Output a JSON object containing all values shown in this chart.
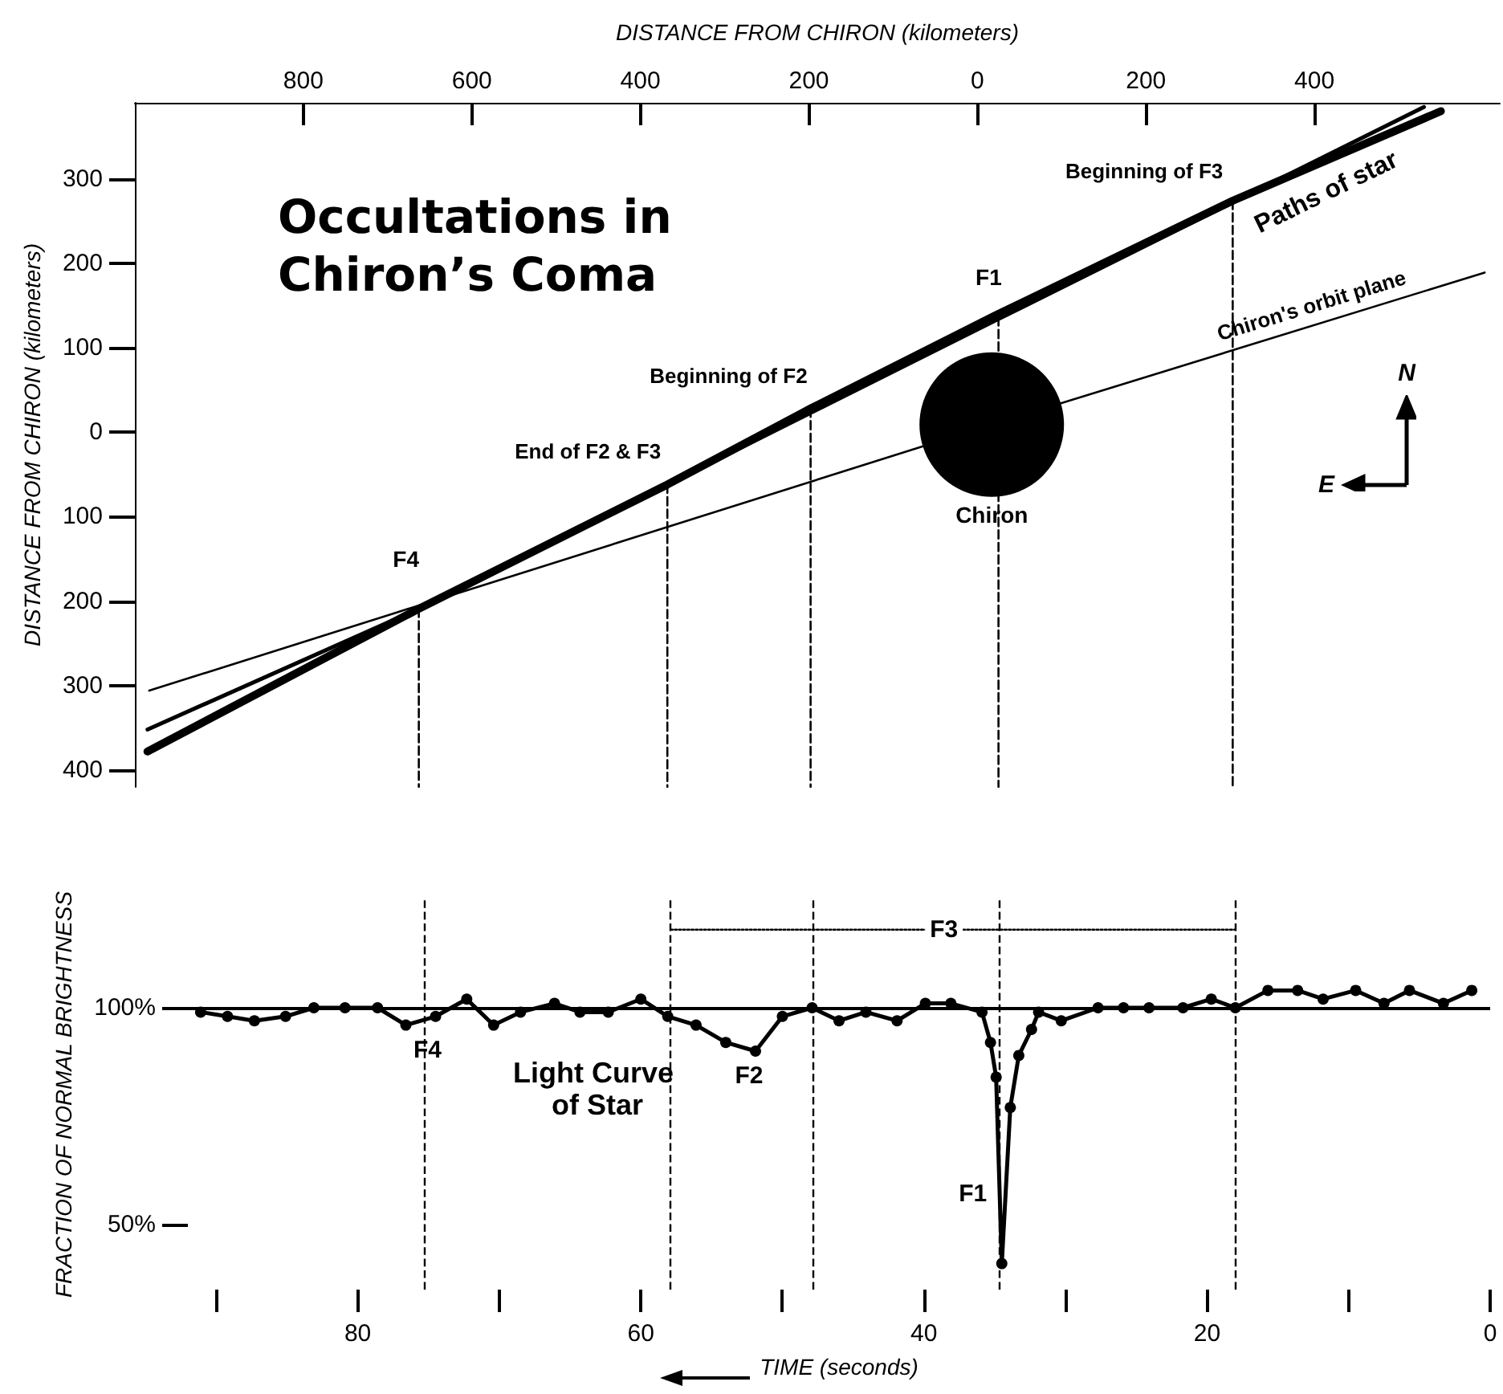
{
  "chart_data": [
    {
      "type": "line",
      "title": "Occultations in Chiron’s Coma",
      "xlabel": "DISTANCE FROM CHIRON (kilometers)",
      "ylabel": "DISTANCE FROM CHIRON (kilometers)",
      "xlim": [
        -1000,
        620
      ],
      "xticks": [
        {
          "value": -800,
          "label": "800"
        },
        {
          "value": -600,
          "label": "600"
        },
        {
          "value": -400,
          "label": "400"
        },
        {
          "value": -200,
          "label": "200"
        },
        0,
        200,
        400
      ],
      "ylim": [
        -420,
        390
      ],
      "yticks": [
        300,
        200,
        100,
        0,
        {
          "value": -100,
          "label": "100"
        },
        {
          "value": -200,
          "label": "200"
        },
        {
          "value": -300,
          "label": "300"
        },
        {
          "value": -400,
          "label": "400"
        }
      ],
      "series": [
        {
          "color": "#000000",
          "x": [
            -985,
            -663,
            21,
            530
          ],
          "values": [
            -352,
            -209,
            132,
            385
          ]
        },
        {
          "color": "#000000",
          "x": [
            -985,
            -663,
            -368,
            -198,
            21,
            303,
            550
          ],
          "values": [
            -378,
            -209,
            -62,
            28,
            138,
            274,
            380
          ]
        },
        {
          "color": "#000000",
          "x": [
            -983,
            17,
            602
          ],
          "values": [
            -306,
            9,
            189
          ]
        },
        {
          "color": "#000000",
          "line_style": "dashed",
          "x": [
            -663,
            -663
          ],
          "values": [
            -209,
            -420
          ]
        },
        {
          "color": "#000000",
          "line_style": "dashed",
          "x": [
            -368,
            -368
          ],
          "values": [
            -62,
            -420
          ]
        },
        {
          "color": "#000000",
          "line_style": "dashed",
          "x": [
            -198,
            -198
          ],
          "values": [
            28,
            -420
          ]
        },
        {
          "color": "#000000",
          "line_style": "dashed",
          "x": [
            25,
            25
          ],
          "values": [
            136,
            -420
          ]
        },
        {
          "color": "#000000",
          "line_style": "dashed",
          "x": [
            303,
            303
          ],
          "values": [
            274,
            -420
          ]
        },
        {
          "type": "scatter",
          "name": "Chiron",
          "color": "#000000",
          "marker": "circle",
          "x": [
            17
          ],
          "values": [
            9
          ]
        }
      ],
      "annotations": [
        {
          "text": "Beginning of F3",
          "x": 303,
          "y": 274
        },
        {
          "text": "Paths of star",
          "x": 400,
          "y": 316
        },
        {
          "text": "F1",
          "x": 21,
          "y": 136
        },
        {
          "text": "Chiron's orbit plane",
          "x": 400,
          "y": 127
        },
        {
          "text": "Beginning of F2",
          "x": -198,
          "y": 28
        },
        {
          "text": "End of F2 & F3",
          "x": -368,
          "y": -62
        },
        {
          "text": "F4",
          "x": -663,
          "y": -209
        },
        "N",
        "E"
      ],
      "legend": false,
      "grid": false,
      "line_style": "solid"
    },
    {
      "type": "line",
      "xlabel": "TIME (seconds)",
      "ylabel": "FRACTION OF NORMAL BRIGHTNESS",
      "xlim": [
        92,
        0
      ],
      "xticks": [
        {
          "value": 90,
          "label": null
        },
        80,
        {
          "value": 70,
          "label": null
        },
        60,
        {
          "value": 50,
          "label": null
        },
        40,
        {
          "value": 30,
          "label": null
        },
        20,
        {
          "value": 10,
          "label": null
        },
        0
      ],
      "ylim": [
        35,
        125
      ],
      "yticks": [
        {
          "value": 100,
          "label": "100%"
        },
        {
          "value": 50,
          "label": "50%"
        }
      ],
      "series": [
        {
          "color": "#000000",
          "x": [
            91.1,
            89.2,
            87.3,
            85.1,
            83.1,
            80.9,
            78.6,
            76.6,
            74.5,
            72.3,
            70.4,
            68.5,
            66.1,
            64.3,
            62.3,
            60.0,
            58.1,
            56.1,
            54.0,
            51.9,
            50.0,
            47.9,
            46.0,
            44.1,
            41.9,
            39.9,
            38.1,
            35.9,
            35.3,
            34.9,
            34.5,
            33.9,
            33.3,
            32.4,
            31.9,
            30.3,
            27.7,
            25.9,
            24.1,
            21.7,
            19.7,
            18.0,
            15.7,
            13.6,
            11.8,
            9.5,
            7.5,
            5.7,
            3.3,
            1.3
          ],
          "values": [
            99,
            98,
            97,
            98,
            100,
            100,
            100,
            96,
            98,
            102,
            96,
            99,
            101,
            99,
            99,
            102,
            98,
            96,
            92,
            90,
            98,
            100,
            97,
            99,
            97,
            101,
            101,
            99,
            92,
            84,
            41,
            77,
            89,
            95,
            99,
            97,
            100,
            100,
            100,
            100,
            102,
            100,
            104,
            104,
            102,
            104,
            101,
            104,
            101,
            104
          ]
        },
        {
          "color": "#000000",
          "marker": "none",
          "line_style": "dotted",
          "x": [
            57.9,
            18.0
          ],
          "values": [
            118,
            118
          ]
        }
      ],
      "ref_lines": [
        {
          "axis": "y",
          "value": 100,
          "color": "#000000",
          "line_style": "solid"
        },
        {
          "axis": "x",
          "value": 75.3,
          "color": "#000000",
          "line_style": "dashed"
        },
        {
          "axis": "x",
          "value": 57.9,
          "color": "#000000",
          "line_style": "dashed"
        },
        {
          "axis": "x",
          "value": 47.9,
          "color": "#000000",
          "line_style": "dashed"
        },
        {
          "axis": "x",
          "value": 34.7,
          "color": "#000000",
          "line_style": "dashed"
        },
        {
          "axis": "x",
          "value": 18.0,
          "color": "#000000",
          "line_style": "dashed"
        }
      ],
      "annotations": [
        {
          "text": "F4",
          "x": 75.3,
          "y": 96
        },
        "Light Curve of Star",
        {
          "text": "F2",
          "x": 51.9,
          "y": 90
        },
        {
          "text": "F1",
          "x": 34.5,
          "y": 41
        },
        {
          "text": "F3",
          "x": 37,
          "y": 118
        }
      ],
      "legend": false,
      "grid": false,
      "marker": "circle",
      "line_style": "solid"
    }
  ]
}
